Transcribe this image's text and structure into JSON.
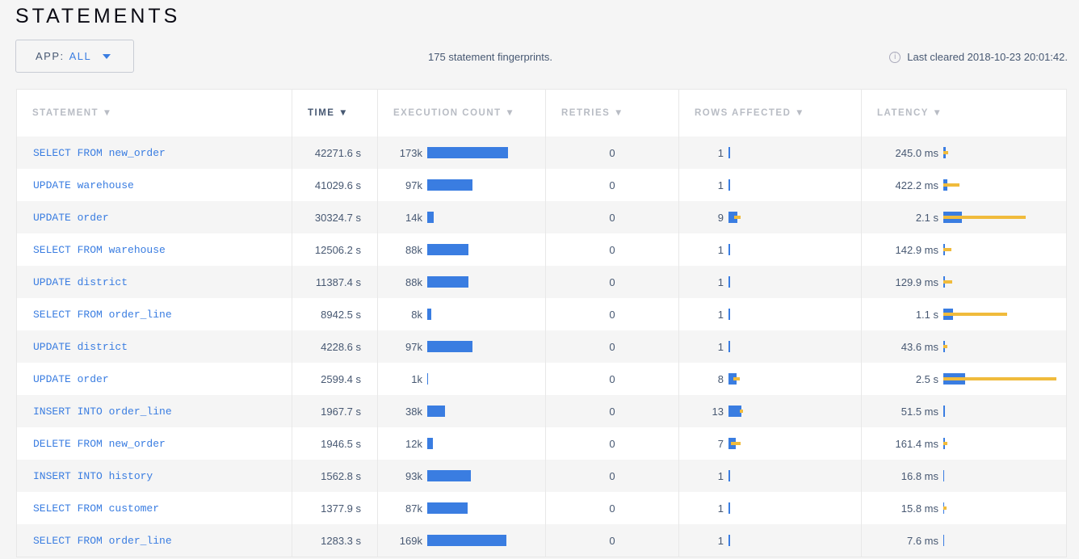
{
  "page_title": "STATEMENTS",
  "app_filter": {
    "label": "APP:",
    "value": "ALL"
  },
  "summary": "175 statement fingerprints.",
  "last_cleared": "Last cleared 2018-10-23 20:01:42.",
  "colors": {
    "accent": "#3a7de1",
    "stddev": "#f0bb3c"
  },
  "columns": [
    "STATEMENT ▼",
    "TIME ▼",
    "EXECUTION COUNT ▼",
    "RETRIES ▼",
    "ROWS AFFECTED ▼",
    "LATENCY ▼"
  ],
  "sorted_column": "TIME",
  "rows": [
    {
      "statement": "SELECT FROM new_order",
      "time": "42271.6 s",
      "count": "173k",
      "count_value": 173000,
      "retries": "0",
      "rows": "1",
      "rows_mean": 1,
      "rows_sd": 0,
      "latency": "245.0 ms",
      "latency_ms": 245.0,
      "latency_sd_ms": 280
    },
    {
      "statement": "UPDATE warehouse",
      "time": "41029.6 s",
      "count": "97k",
      "count_value": 97000,
      "retries": "0",
      "rows": "1",
      "rows_mean": 1,
      "rows_sd": 0,
      "latency": "422.2 ms",
      "latency_ms": 422.2,
      "latency_sd_ms": 1430
    },
    {
      "statement": "UPDATE order",
      "time": "30324.7 s",
      "count": "14k",
      "count_value": 14000,
      "retries": "0",
      "rows": "9",
      "rows_mean": 9,
      "rows_sd": 3.3,
      "latency": "2.1 s",
      "latency_ms": 2100,
      "latency_sd_ms": 7340
    },
    {
      "statement": "SELECT FROM warehouse",
      "time": "12506.2 s",
      "count": "88k",
      "count_value": 88000,
      "retries": "0",
      "rows": "1",
      "rows_mean": 1,
      "rows_sd": 0,
      "latency": "142.9 ms",
      "latency_ms": 142.9,
      "latency_sd_ms": 780
    },
    {
      "statement": "UPDATE district",
      "time": "11387.4 s",
      "count": "88k",
      "count_value": 88000,
      "retries": "0",
      "rows": "1",
      "rows_mean": 1,
      "rows_sd": 0,
      "latency": "129.9 ms",
      "latency_ms": 129.9,
      "latency_sd_ms": 890
    },
    {
      "statement": "SELECT FROM order_line",
      "time": "8942.5 s",
      "count": "8k",
      "count_value": 8000,
      "retries": "0",
      "rows": "1",
      "rows_mean": 1,
      "rows_sd": 0,
      "latency": "1.1 s",
      "latency_ms": 1100,
      "latency_sd_ms": 6200
    },
    {
      "statement": "UPDATE district",
      "time": "4228.6 s",
      "count": "97k",
      "count_value": 97000,
      "retries": "0",
      "rows": "1",
      "rows_mean": 1,
      "rows_sd": 0,
      "latency": "43.6 ms",
      "latency_ms": 43.6,
      "latency_sd_ms": 420
    },
    {
      "statement": "UPDATE order",
      "time": "2599.4 s",
      "count": "1k",
      "count_value": 1000,
      "retries": "0",
      "rows": "8",
      "rows_mean": 8,
      "rows_sd": 3.3,
      "latency": "2.5 s",
      "latency_ms": 2500,
      "latency_sd_ms": 10460
    },
    {
      "statement": "INSERT INTO order_line",
      "time": "1967.7 s",
      "count": "38k",
      "count_value": 38000,
      "retries": "0",
      "rows": "13",
      "rows_mean": 13,
      "rows_sd": 1.6,
      "latency": "51.5 ms",
      "latency_ms": 51.5,
      "latency_sd_ms": 20
    },
    {
      "statement": "DELETE FROM new_order",
      "time": "1946.5 s",
      "count": "12k",
      "count_value": 12000,
      "retries": "0",
      "rows": "7",
      "rows_mean": 7,
      "rows_sd": 4.9,
      "latency": "161.4 ms",
      "latency_ms": 161.4,
      "latency_sd_ms": 300
    },
    {
      "statement": "INSERT INTO history",
      "time": "1562.8 s",
      "count": "93k",
      "count_value": 93000,
      "retries": "0",
      "rows": "1",
      "rows_mean": 1,
      "rows_sd": 0,
      "latency": "16.8 ms",
      "latency_ms": 16.8,
      "latency_sd_ms": 10
    },
    {
      "statement": "SELECT FROM customer",
      "time": "1377.9 s",
      "count": "87k",
      "count_value": 87000,
      "retries": "0",
      "rows": "1",
      "rows_mean": 1,
      "rows_sd": 0,
      "latency": "15.8 ms",
      "latency_ms": 15.8,
      "latency_sd_ms": 350
    },
    {
      "statement": "SELECT FROM order_line",
      "time": "1283.3 s",
      "count": "169k",
      "count_value": 169000,
      "retries": "0",
      "rows": "1",
      "rows_mean": 1,
      "rows_sd": 0,
      "latency": "7.6 ms",
      "latency_ms": 7.6,
      "latency_sd_ms": 5
    }
  ]
}
